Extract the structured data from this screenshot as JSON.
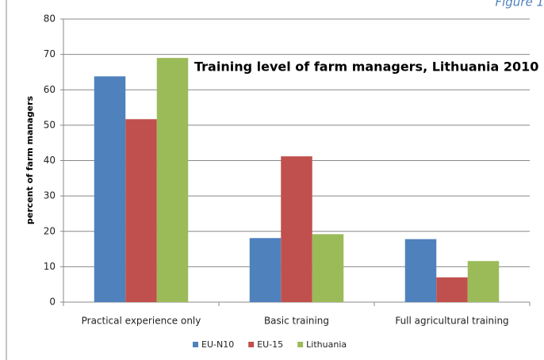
{
  "chart_data": {
    "type": "bar",
    "title": "Training level of farm managers, Lithuania 2010",
    "annotation": "Figure 1",
    "y_label": "percent of farm  managers",
    "categories": [
      "Practical experience only",
      "Basic training",
      "Full agricultural training"
    ],
    "series": [
      {
        "name": "EU-N10",
        "color": "#4f81bd",
        "values": [
          63.8,
          18.1,
          17.8
        ]
      },
      {
        "name": "EU-15",
        "color": "#c0504d",
        "values": [
          51.7,
          41.2,
          7.0
        ]
      },
      {
        "name": "Lithuania",
        "color": "#9bbb59",
        "values": [
          69,
          19.2,
          11.6
        ]
      }
    ],
    "ylim": [
      0,
      80
    ],
    "yticks": [
      0,
      10,
      20,
      30,
      40,
      50,
      60,
      70,
      80
    ],
    "grid": true
  }
}
